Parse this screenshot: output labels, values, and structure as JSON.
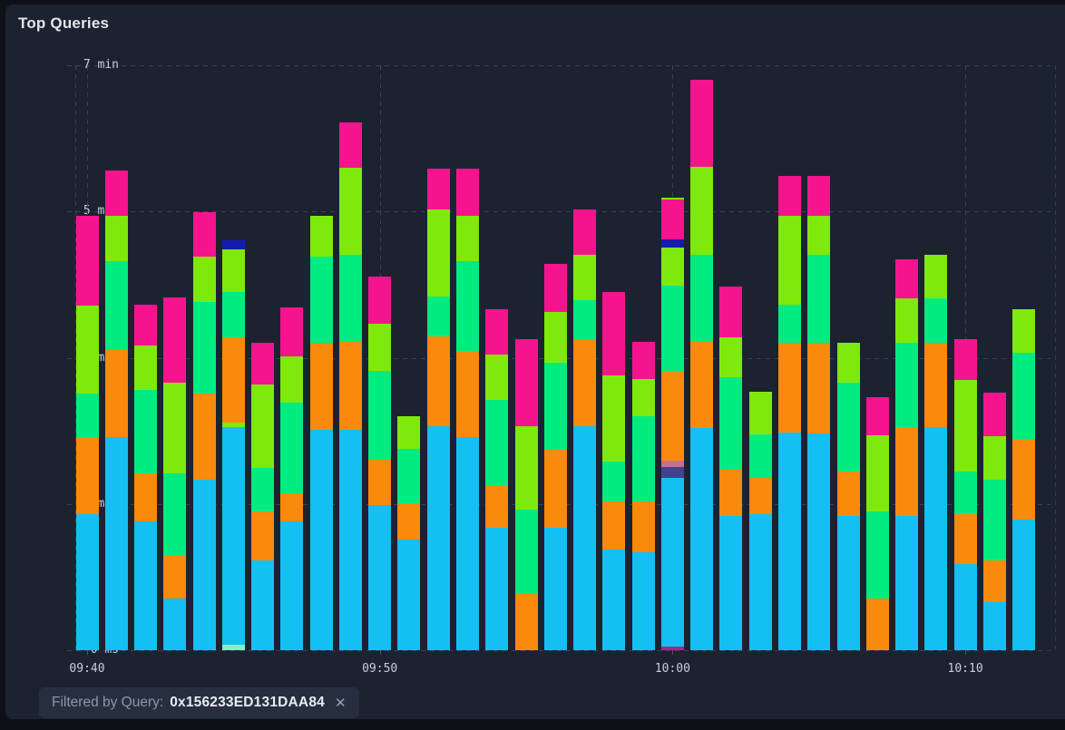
{
  "panel": {
    "title": "Top Queries"
  },
  "filter_chip": {
    "label": "Filtered by Query:",
    "value": "0x156233ED131DAA84",
    "close_icon": "✕"
  },
  "chart_data": {
    "type": "bar",
    "stacked": true,
    "title": "Top Queries",
    "unit": "minutes",
    "ylim": [
      0,
      7
    ],
    "grid": "dashed",
    "legend": "none",
    "y_ticks": [
      {
        "label": "7 min",
        "value": 7
      },
      {
        "label": "5 min",
        "value": 5.25
      },
      {
        "label": "3 min",
        "value": 3.5
      },
      {
        "label": "2 min",
        "value": 1.75
      },
      {
        "label": "0 ms",
        "value": 0
      }
    ],
    "x_tick_labels": [
      "09:40",
      "09:50",
      "10:00",
      "10:10"
    ],
    "x_tick_bar_indices": [
      0,
      10,
      20,
      30
    ],
    "series_colors": {
      "blue": "#14bff2",
      "orange": "#f98a0c",
      "green": "#00ec80",
      "lime": "#7fe90b",
      "pink": "#f6148e",
      "navy": "#141cae",
      "mint": "#85efc4",
      "indigo": "#454190",
      "rose": "#c7708f",
      "magenta": "#a62787"
    },
    "bars": [
      {
        "time": "09:40",
        "segments": [
          [
            "blue",
            1.63
          ],
          [
            "orange",
            0.92
          ],
          [
            "green",
            0.52
          ],
          [
            "lime",
            1.05
          ],
          [
            "pink",
            1.08
          ]
        ]
      },
      {
        "time": "09:41",
        "segments": [
          [
            "blue",
            2.55
          ],
          [
            "orange",
            1.04
          ],
          [
            "green",
            1.07
          ],
          [
            "lime",
            0.54
          ],
          [
            "pink",
            0.54
          ]
        ]
      },
      {
        "time": "09:42",
        "segments": [
          [
            "blue",
            1.54
          ],
          [
            "orange",
            0.58
          ],
          [
            "green",
            0.99
          ],
          [
            "lime",
            0.54
          ],
          [
            "pink",
            0.48
          ]
        ]
      },
      {
        "time": "09:43",
        "segments": [
          [
            "blue",
            0.62
          ],
          [
            "orange",
            0.51
          ],
          [
            "green",
            0.99
          ],
          [
            "lime",
            1.08
          ],
          [
            "pink",
            1.02
          ]
        ]
      },
      {
        "time": "09:44",
        "segments": [
          [
            "blue",
            2.04
          ],
          [
            "orange",
            1.03
          ],
          [
            "green",
            1.1
          ],
          [
            "lime",
            0.54
          ],
          [
            "pink",
            0.53
          ]
        ]
      },
      {
        "time": "09:45",
        "segments": [
          [
            "mint",
            0.07
          ],
          [
            "blue",
            2.6
          ],
          [
            "lime",
            0.05
          ],
          [
            "orange",
            1.02
          ],
          [
            "green",
            0.55
          ],
          [
            "lime",
            0.51
          ],
          [
            "navy",
            0.11
          ]
        ]
      },
      {
        "time": "09:46",
        "segments": [
          [
            "blue",
            1.08
          ],
          [
            "orange",
            0.58
          ],
          [
            "green",
            0.52
          ],
          [
            "lime",
            1.0
          ],
          [
            "pink",
            0.5
          ]
        ]
      },
      {
        "time": "09:47",
        "segments": [
          [
            "blue",
            1.54
          ],
          [
            "orange",
            0.34
          ],
          [
            "green",
            1.08
          ],
          [
            "lime",
            0.56
          ],
          [
            "pink",
            0.58
          ]
        ]
      },
      {
        "time": "09:48",
        "segments": [
          [
            "blue",
            2.64
          ],
          [
            "orange",
            1.04
          ],
          [
            "green",
            1.03
          ],
          [
            "lime",
            0.49
          ]
        ]
      },
      {
        "time": "09:49",
        "segments": [
          [
            "blue",
            2.64
          ],
          [
            "orange",
            1.06
          ],
          [
            "green",
            1.03
          ],
          [
            "lime",
            1.04
          ],
          [
            "pink",
            0.55
          ]
        ]
      },
      {
        "time": "09:50",
        "segments": [
          [
            "blue",
            1.74
          ],
          [
            "orange",
            0.54
          ],
          [
            "green",
            1.06
          ],
          [
            "lime",
            0.57
          ],
          [
            "pink",
            0.56
          ]
        ]
      },
      {
        "time": "09:51",
        "segments": [
          [
            "blue",
            1.32
          ],
          [
            "orange",
            0.44
          ],
          [
            "green",
            0.65
          ],
          [
            "lime",
            0.39
          ]
        ]
      },
      {
        "time": "09:52",
        "segments": [
          [
            "blue",
            2.68
          ],
          [
            "orange",
            1.07
          ],
          [
            "green",
            0.48
          ],
          [
            "lime",
            1.04
          ],
          [
            "pink",
            0.49
          ]
        ]
      },
      {
        "time": "09:53",
        "segments": [
          [
            "blue",
            2.55
          ],
          [
            "orange",
            1.03
          ],
          [
            "green",
            1.08
          ],
          [
            "lime",
            0.54
          ],
          [
            "pink",
            0.56
          ]
        ]
      },
      {
        "time": "09:54",
        "segments": [
          [
            "blue",
            1.47
          ],
          [
            "orange",
            0.49
          ],
          [
            "green",
            1.04
          ],
          [
            "lime",
            0.54
          ],
          [
            "pink",
            0.54
          ]
        ]
      },
      {
        "time": "09:55",
        "segments": [
          [
            "orange",
            0.67
          ],
          [
            "green",
            1.01
          ],
          [
            "lime",
            1.0
          ],
          [
            "pink",
            1.04
          ]
        ]
      },
      {
        "time": "09:56",
        "segments": [
          [
            "blue",
            1.47
          ],
          [
            "orange",
            0.93
          ],
          [
            "green",
            1.04
          ],
          [
            "lime",
            0.61
          ],
          [
            "pink",
            0.57
          ]
        ]
      },
      {
        "time": "09:57",
        "segments": [
          [
            "blue",
            2.68
          ],
          [
            "orange",
            1.03
          ],
          [
            "green",
            0.48
          ],
          [
            "lime",
            0.54
          ],
          [
            "pink",
            0.54
          ]
        ]
      },
      {
        "time": "09:58",
        "segments": [
          [
            "blue",
            1.2
          ],
          [
            "orange",
            0.58
          ],
          [
            "green",
            0.48
          ],
          [
            "lime",
            1.03
          ],
          [
            "pink",
            1.0
          ]
        ]
      },
      {
        "time": "09:59",
        "segments": [
          [
            "blue",
            1.17
          ],
          [
            "orange",
            0.61
          ],
          [
            "green",
            1.02
          ],
          [
            "lime",
            0.45
          ],
          [
            "pink",
            0.44
          ]
        ]
      },
      {
        "time": "10:00",
        "segments": [
          [
            "magenta",
            0.04
          ],
          [
            "blue",
            2.02
          ],
          [
            "indigo",
            0.13
          ],
          [
            "rose",
            0.08
          ],
          [
            "orange",
            1.07
          ],
          [
            "green",
            1.02
          ],
          [
            "lime",
            0.46
          ],
          [
            "navy",
            0.1
          ],
          [
            "pink",
            0.47
          ],
          [
            "lime",
            0.03
          ]
        ]
      },
      {
        "time": "10:01",
        "segments": [
          [
            "blue",
            2.66
          ],
          [
            "orange",
            1.04
          ],
          [
            "green",
            1.03
          ],
          [
            "lime",
            1.05
          ],
          [
            "pink",
            1.05
          ]
        ]
      },
      {
        "time": "10:02",
        "segments": [
          [
            "blue",
            1.61
          ],
          [
            "orange",
            0.55
          ],
          [
            "green",
            1.11
          ],
          [
            "lime",
            0.48
          ],
          [
            "pink",
            0.6
          ]
        ]
      },
      {
        "time": "10:03",
        "segments": [
          [
            "blue",
            1.63
          ],
          [
            "orange",
            0.44
          ],
          [
            "green",
            0.51
          ],
          [
            "lime",
            0.51
          ]
        ]
      },
      {
        "time": "10:04",
        "segments": [
          [
            "blue",
            2.6
          ],
          [
            "orange",
            1.08
          ],
          [
            "green",
            0.45
          ],
          [
            "lime",
            1.07
          ],
          [
            "pink",
            0.48
          ]
        ]
      },
      {
        "time": "10:05",
        "segments": [
          [
            "blue",
            2.59
          ],
          [
            "orange",
            1.09
          ],
          [
            "green",
            1.05
          ],
          [
            "lime",
            0.47
          ],
          [
            "pink",
            0.48
          ]
        ]
      },
      {
        "time": "10:06",
        "segments": [
          [
            "blue",
            1.61
          ],
          [
            "orange",
            0.53
          ],
          [
            "green",
            1.06
          ],
          [
            "lime",
            0.48
          ]
        ]
      },
      {
        "time": "10:07",
        "segments": [
          [
            "orange",
            0.62
          ],
          [
            "green",
            1.04
          ],
          [
            "lime",
            0.91
          ],
          [
            "pink",
            0.46
          ]
        ]
      },
      {
        "time": "10:08",
        "segments": [
          [
            "blue",
            1.61
          ],
          [
            "orange",
            1.06
          ],
          [
            "green",
            1.01
          ],
          [
            "lime",
            0.53
          ],
          [
            "pink",
            0.47
          ]
        ]
      },
      {
        "time": "10:09",
        "segments": [
          [
            "blue",
            2.67
          ],
          [
            "orange",
            1.01
          ],
          [
            "green",
            0.53
          ],
          [
            "lime",
            0.52
          ]
        ]
      },
      {
        "time": "10:10",
        "segments": [
          [
            "blue",
            1.03
          ],
          [
            "orange",
            0.6
          ],
          [
            "green",
            0.51
          ],
          [
            "lime",
            1.09
          ],
          [
            "pink",
            0.49
          ]
        ]
      },
      {
        "time": "10:11",
        "segments": [
          [
            "blue",
            0.58
          ],
          [
            "orange",
            0.5
          ],
          [
            "green",
            0.96
          ],
          [
            "lime",
            0.52
          ],
          [
            "pink",
            0.52
          ]
        ]
      },
      {
        "time": "10:12",
        "segments": [
          [
            "blue",
            1.56
          ],
          [
            "orange",
            0.97
          ],
          [
            "green",
            1.03
          ],
          [
            "lime",
            0.52
          ]
        ]
      }
    ]
  }
}
